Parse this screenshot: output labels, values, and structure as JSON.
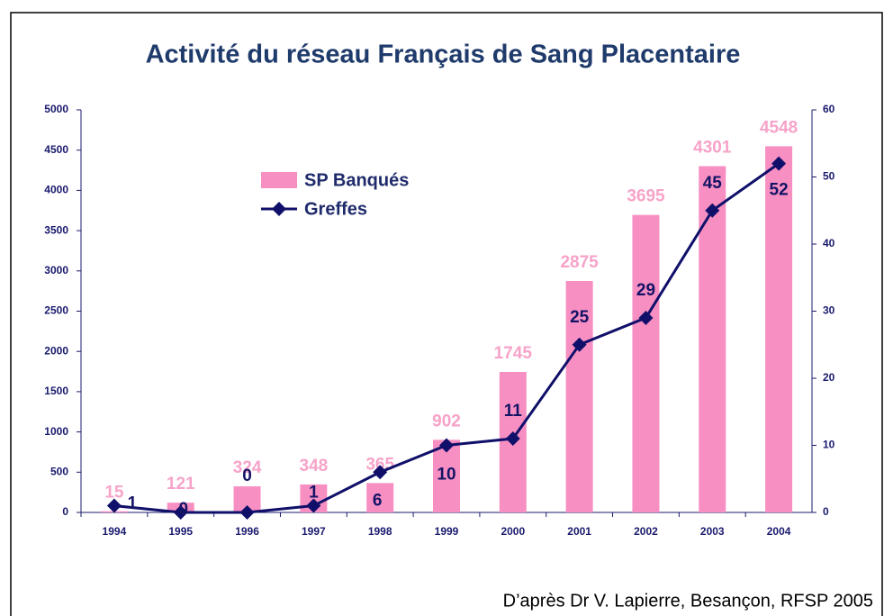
{
  "chart_data": {
    "type": "bar-line",
    "title": "Activité du réseau Français de Sang Placentaire",
    "categories": [
      "1994",
      "1995",
      "1996",
      "1997",
      "1998",
      "1999",
      "2000",
      "2001",
      "2002",
      "2003",
      "2004"
    ],
    "series": [
      {
        "name": "SP Banqués",
        "color": "#f78fc3",
        "values": [
          15,
          121,
          324,
          348,
          365,
          902,
          1745,
          2875,
          3695,
          4301,
          4548
        ]
      },
      {
        "name": "Greffes",
        "color": "#10106a",
        "axis": "y2",
        "values": [
          1,
          0,
          0,
          1,
          6,
          10,
          11,
          25,
          29,
          45,
          52
        ]
      }
    ],
    "ylim": [
      0,
      5000
    ],
    "yticks": [
      0,
      500,
      1000,
      1500,
      2000,
      2500,
      3000,
      3500,
      4000,
      4500,
      5000
    ],
    "y2lim": [
      0,
      60
    ],
    "y2ticks": [
      0,
      10,
      20,
      30,
      40,
      50,
      60
    ],
    "source": "D’après Dr V. Lapierre, Besançon, RFSP 2005"
  }
}
